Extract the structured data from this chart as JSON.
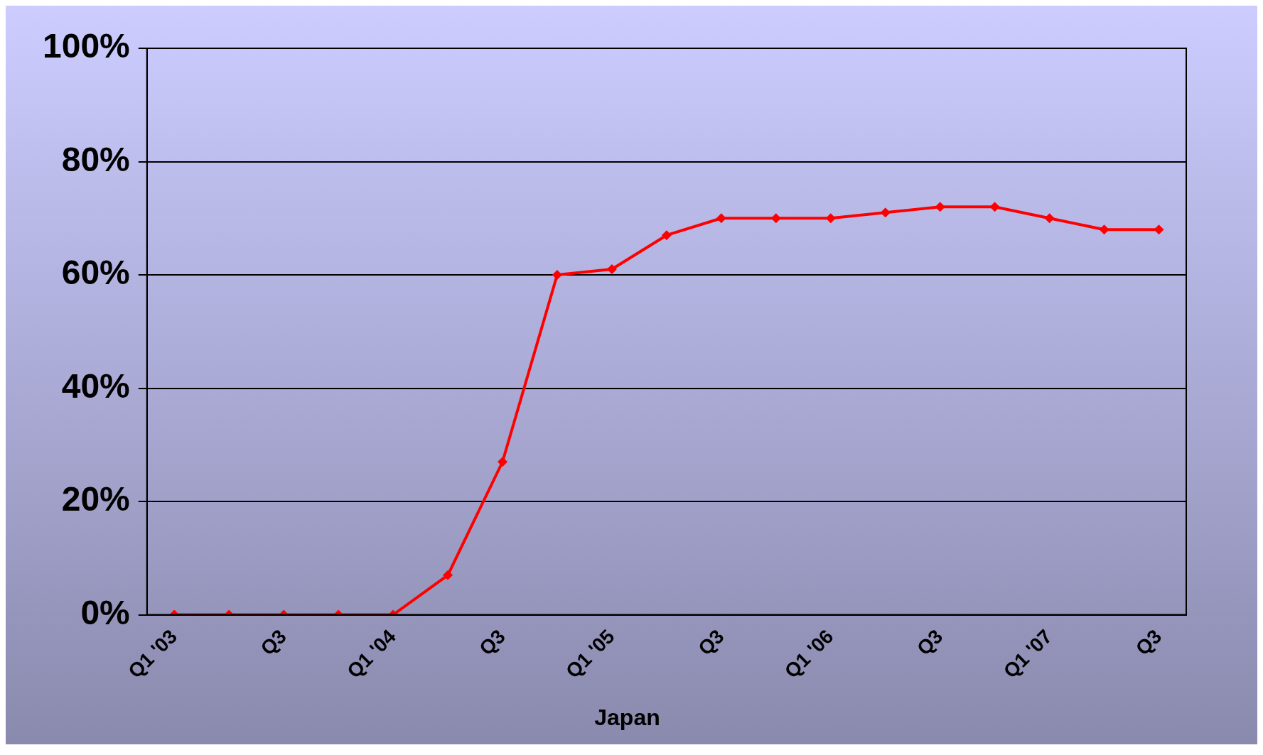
{
  "chart_data": {
    "type": "line",
    "categories": [
      "Q1 '03",
      null,
      "Q3",
      null,
      "Q1 '04",
      null,
      "Q3",
      null,
      "Q1 '05",
      null,
      "Q3",
      null,
      "Q1 '06",
      null,
      "Q3",
      null,
      "Q1 '07",
      null,
      "Q3"
    ],
    "series": [
      {
        "name": "Japan",
        "color": "#ff0000",
        "values": [
          0,
          0,
          0,
          0,
          0,
          7,
          27,
          60,
          61,
          67,
          70,
          70,
          70,
          71,
          72,
          72,
          70,
          68,
          68
        ]
      }
    ],
    "ylim": [
      0,
      100
    ],
    "yticks": [
      {
        "value": 0,
        "label": "0%"
      },
      {
        "value": 20,
        "label": "20%"
      },
      {
        "value": 40,
        "label": "40%"
      },
      {
        "value": 60,
        "label": "60%"
      },
      {
        "value": 80,
        "label": "80%"
      },
      {
        "value": 100,
        "label": "100%"
      }
    ],
    "grid": "y",
    "legend": "bottom",
    "marker": "diamond",
    "line_style": "solid"
  }
}
